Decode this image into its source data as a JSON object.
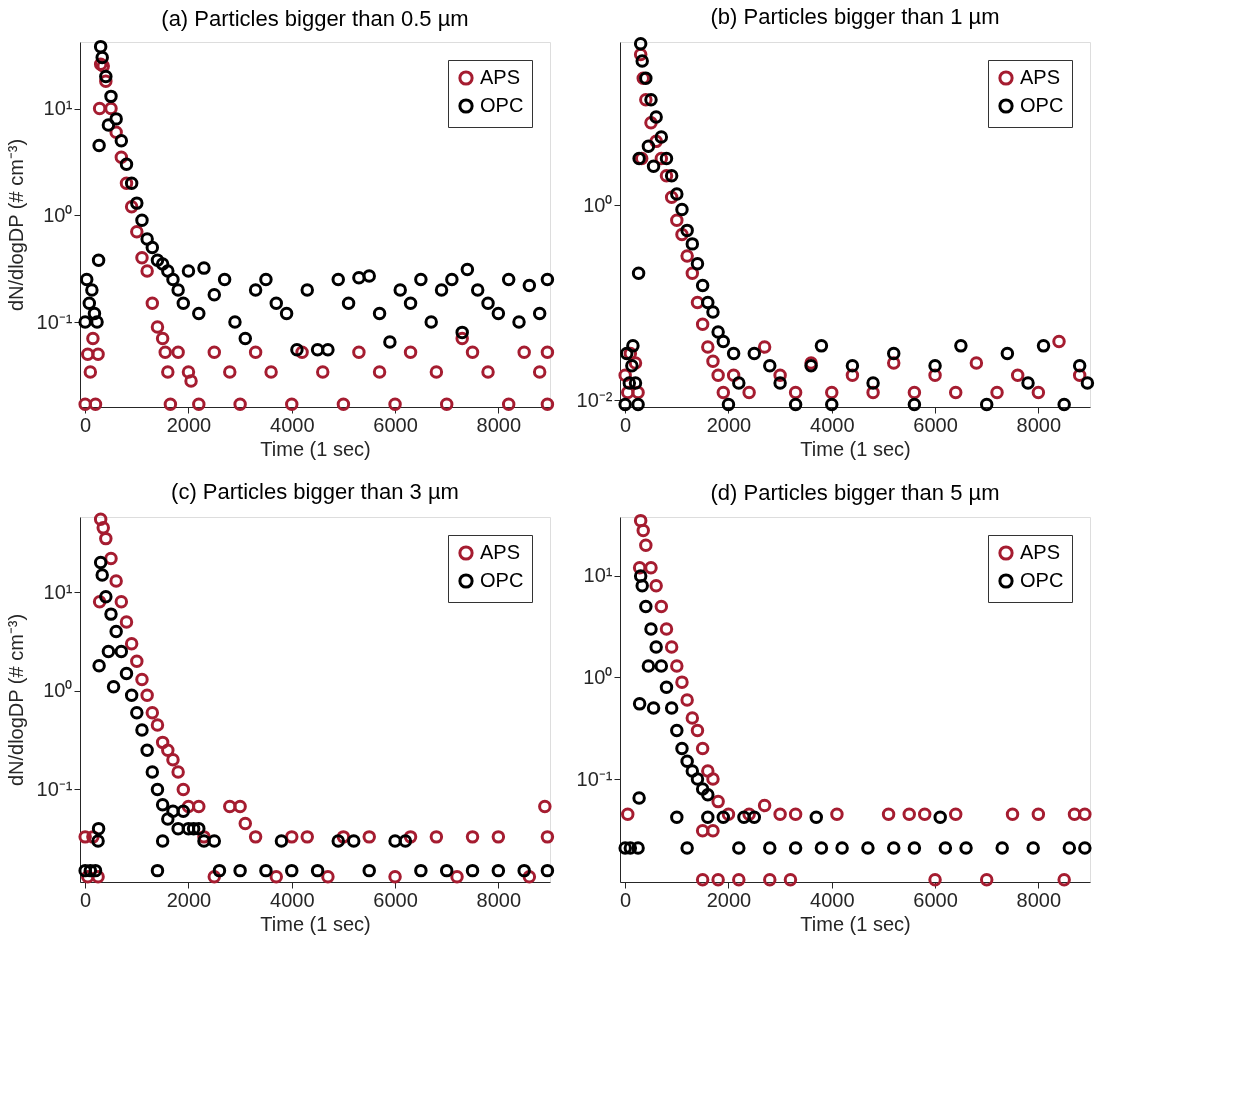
{
  "chart_data": [
    {
      "type": "scatter",
      "title": "(a) Particles bigger than 0.5 µm",
      "xlabel": "Time (1 sec)",
      "ylabel": "dN/dlogDP (# cm⁻³)",
      "log": "y",
      "grid": false,
      "legend": "top right",
      "marker": "circle",
      "xlim": [
        -100,
        9000
      ],
      "xticks": [
        0,
        2000,
        4000,
        6000,
        8000
      ],
      "ylim": [
        0.016,
        42
      ],
      "yticks": [
        {
          "value": 0.1,
          "label": "10⁻¹"
        },
        {
          "value": 1,
          "label": "10⁰"
        },
        {
          "value": 10,
          "label": "10¹"
        }
      ],
      "series": [
        {
          "name": "APS",
          "color": "#a51c30",
          "x": [
            0,
            50,
            100,
            150,
            200,
            250,
            280,
            300,
            350,
            400,
            500,
            600,
            700,
            800,
            900,
            1000,
            1100,
            1200,
            1300,
            1400,
            1500,
            1550,
            1600,
            1650,
            1800,
            2000,
            2050,
            2200,
            2500,
            2800,
            3000,
            3300,
            3600,
            4000,
            4200,
            4600,
            5000,
            5300,
            5700,
            6000,
            6300,
            6800,
            7000,
            7300,
            7500,
            7800,
            8200,
            8500,
            8800,
            8950,
            8950
          ],
          "values": [
            0.017,
            0.05,
            0.034,
            0.07,
            0.017,
            0.05,
            10,
            26,
            25,
            18,
            10,
            6,
            3.5,
            2,
            1.2,
            0.7,
            0.4,
            0.3,
            0.15,
            0.09,
            0.07,
            0.052,
            0.034,
            0.017,
            0.052,
            0.034,
            0.028,
            0.017,
            0.052,
            0.034,
            0.017,
            0.052,
            0.034,
            0.017,
            0.052,
            0.034,
            0.017,
            0.052,
            0.034,
            0.017,
            0.052,
            0.034,
            0.017,
            0.07,
            0.052,
            0.034,
            0.017,
            0.052,
            0.034,
            0.017,
            0.052
          ]
        },
        {
          "name": "OPC",
          "color": "#000000",
          "x": [
            0,
            30,
            80,
            130,
            180,
            230,
            260,
            270,
            300,
            330,
            400,
            450,
            500,
            600,
            700,
            800,
            900,
            1000,
            1100,
            1200,
            1300,
            1400,
            1500,
            1600,
            1700,
            1800,
            1900,
            2000,
            2200,
            2300,
            2500,
            2700,
            2900,
            3100,
            3300,
            3500,
            3700,
            3900,
            4100,
            4300,
            4500,
            4700,
            4900,
            5100,
            5300,
            5500,
            5700,
            5900,
            6100,
            6300,
            6500,
            6700,
            6900,
            7100,
            7300,
            7400,
            7600,
            7800,
            8000,
            8200,
            8400,
            8600,
            8800,
            8950
          ],
          "values": [
            0.1,
            0.25,
            0.15,
            0.2,
            0.12,
            0.1,
            0.38,
            4.5,
            38,
            30,
            20,
            7,
            13,
            8,
            5,
            3,
            2,
            1.3,
            0.9,
            0.6,
            0.5,
            0.38,
            0.35,
            0.3,
            0.25,
            0.2,
            0.15,
            0.3,
            0.12,
            0.32,
            0.18,
            0.25,
            0.1,
            0.07,
            0.2,
            0.25,
            0.15,
            0.12,
            0.055,
            0.2,
            0.055,
            0.055,
            0.25,
            0.15,
            0.26,
            0.27,
            0.12,
            0.065,
            0.2,
            0.15,
            0.25,
            0.1,
            0.2,
            0.25,
            0.08,
            0.31,
            0.2,
            0.15,
            0.12,
            0.25,
            0.1,
            0.22,
            0.12,
            0.25
          ]
        }
      ]
    },
    {
      "type": "scatter",
      "title": "(b) Particles bigger than 1 µm",
      "xlabel": "Time (1 sec)",
      "log": "y",
      "grid": false,
      "legend": "top right",
      "marker": "circle",
      "xlim": [
        -100,
        9000
      ],
      "xticks": [
        0,
        2000,
        4000,
        6000,
        8000
      ],
      "ylim": [
        0.0085,
        47
      ],
      "yticks": [
        {
          "value": 0.01,
          "label": "10⁻²"
        },
        {
          "value": 1,
          "label": "10⁰"
        }
      ],
      "series": [
        {
          "name": "APS",
          "color": "#a51c30",
          "x": [
            0,
            50,
            100,
            200,
            250,
            320,
            300,
            350,
            400,
            500,
            600,
            700,
            800,
            900,
            1000,
            1100,
            1200,
            1300,
            1400,
            1500,
            1600,
            1700,
            1800,
            1900,
            2100,
            2400,
            2700,
            3000,
            3300,
            3600,
            4000,
            4400,
            4800,
            5200,
            5600,
            6000,
            6400,
            6800,
            7200,
            7600,
            8000,
            8400,
            8800
          ],
          "values": [
            0.018,
            0.012,
            0.03,
            0.024,
            0.012,
            3,
            35,
            20,
            12,
            7,
            4.5,
            3,
            2,
            1.2,
            0.7,
            0.5,
            0.3,
            0.2,
            0.1,
            0.06,
            0.035,
            0.025,
            0.018,
            0.012,
            0.018,
            0.012,
            0.035,
            0.018,
            0.012,
            0.024,
            0.012,
            0.018,
            0.012,
            0.024,
            0.012,
            0.018,
            0.012,
            0.024,
            0.012,
            0.018,
            0.012,
            0.04,
            0.018
          ]
        },
        {
          "name": "OPC",
          "color": "#000000",
          "x": [
            0,
            30,
            80,
            130,
            150,
            200,
            250,
            260,
            270,
            300,
            330,
            400,
            450,
            500,
            550,
            600,
            700,
            800,
            900,
            1000,
            1100,
            1200,
            1300,
            1400,
            1500,
            1600,
            1700,
            1800,
            1900,
            2000,
            2100,
            2200,
            2500,
            2800,
            3000,
            3300,
            3600,
            3800,
            4000,
            4400,
            4800,
            5200,
            5600,
            6000,
            6500,
            7000,
            7400,
            7800,
            8100,
            8500,
            8800,
            8950
          ],
          "values": [
            0.009,
            0.03,
            0.015,
            0.0225,
            0.036,
            0.015,
            0.009,
            0.2,
            3,
            45,
            30,
            20,
            4,
            12,
            2.5,
            8,
            5,
            3,
            2,
            1.3,
            0.9,
            0.55,
            0.4,
            0.25,
            0.15,
            0.1,
            0.08,
            0.05,
            0.04,
            0.009,
            0.03,
            0.015,
            0.03,
            0.0225,
            0.015,
            0.009,
            0.0225,
            0.036,
            0.009,
            0.0225,
            0.015,
            0.03,
            0.009,
            0.0225,
            0.036,
            0.009,
            0.03,
            0.015,
            0.036,
            0.009,
            0.0225,
            0.015
          ]
        }
      ]
    },
    {
      "type": "scatter",
      "title": "(c) Particles bigger than 3 µm",
      "xlabel": "Time (1 sec)",
      "ylabel": "dN/dlogDP (# cm⁻³)",
      "log": "y",
      "grid": false,
      "legend": "top right",
      "marker": "circle",
      "xlim": [
        -100,
        9000
      ],
      "xticks": [
        0,
        2000,
        4000,
        6000,
        8000
      ],
      "ylim": [
        0.0115,
        58
      ],
      "yticks": [
        {
          "value": 0.1,
          "label": "10⁻¹"
        },
        {
          "value": 1,
          "label": "10⁰"
        },
        {
          "value": 10,
          "label": "10¹"
        }
      ],
      "series": [
        {
          "name": "APS",
          "color": "#a51c30",
          "x": [
            0,
            50,
            150,
            250,
            280,
            300,
            350,
            400,
            500,
            600,
            700,
            800,
            900,
            1000,
            1100,
            1200,
            1300,
            1400,
            1500,
            1600,
            1700,
            1800,
            1900,
            2000,
            2200,
            2300,
            2500,
            2800,
            3000,
            3100,
            3300,
            3700,
            4000,
            4300,
            4700,
            5000,
            5500,
            6000,
            6300,
            6800,
            7200,
            7500,
            8000,
            8600,
            8900,
            8950
          ],
          "values": [
            0.033,
            0.013,
            0.033,
            0.013,
            8,
            55,
            45,
            35,
            22,
            13,
            8,
            5,
            3,
            2,
            1.3,
            0.9,
            0.6,
            0.45,
            0.3,
            0.25,
            0.2,
            0.15,
            0.1,
            0.067,
            0.067,
            0.033,
            0.013,
            0.067,
            0.067,
            0.045,
            0.033,
            0.013,
            0.033,
            0.033,
            0.013,
            0.033,
            0.033,
            0.013,
            0.033,
            0.033,
            0.013,
            0.033,
            0.033,
            0.013,
            0.067,
            0.033
          ]
        },
        {
          "name": "OPC",
          "color": "#000000",
          "x": [
            0,
            100,
            200,
            250,
            260,
            270,
            300,
            330,
            400,
            450,
            500,
            550,
            600,
            700,
            800,
            900,
            1000,
            1100,
            1200,
            1300,
            1400,
            1500,
            1600,
            1700,
            1800,
            1900,
            2000,
            2100,
            2200,
            1400,
            1500,
            2300,
            2500,
            2600,
            3000,
            3500,
            3800,
            4000,
            4500,
            4900,
            5200,
            5500,
            6000,
            6200,
            6500,
            7000,
            7500,
            8000,
            8500,
            8950
          ],
          "values": [
            0.015,
            0.015,
            0.015,
            0.03,
            0.04,
            1.8,
            20,
            15,
            9,
            2.5,
            6,
            1.1,
            4,
            2.5,
            1.5,
            0.9,
            0.6,
            0.4,
            0.25,
            0.15,
            0.1,
            0.07,
            0.05,
            0.06,
            0.04,
            0.06,
            0.04,
            0.04,
            0.04,
            0.015,
            0.03,
            0.03,
            0.03,
            0.015,
            0.015,
            0.015,
            0.03,
            0.015,
            0.015,
            0.03,
            0.03,
            0.015,
            0.03,
            0.03,
            0.015,
            0.015,
            0.015,
            0.015,
            0.015,
            0.015
          ]
        }
      ]
    },
    {
      "type": "scatter",
      "title": "(d) Particles bigger than 5 µm",
      "xlabel": "Time (1 sec)",
      "log": "y",
      "grid": false,
      "legend": "top right",
      "marker": "circle",
      "xlim": [
        -100,
        9000
      ],
      "xticks": [
        0,
        2000,
        4000,
        6000,
        8000
      ],
      "ylim": [
        0.0097,
        38
      ],
      "yticks": [
        {
          "value": 0.1,
          "label": "10⁻¹"
        },
        {
          "value": 1,
          "label": "10⁰"
        },
        {
          "value": 10,
          "label": "10¹"
        }
      ],
      "series": [
        {
          "name": "APS",
          "color": "#a51c30",
          "x": [
            50,
            280,
            300,
            350,
            400,
            500,
            600,
            700,
            800,
            900,
            1000,
            1100,
            1200,
            1300,
            1400,
            1500,
            1600,
            1700,
            1800,
            1500,
            1700,
            1500,
            1800,
            2000,
            2200,
            2400,
            2700,
            2800,
            3000,
            3200,
            3300,
            4100,
            5100,
            5500,
            5800,
            6000,
            6400,
            7000,
            7500,
            8000,
            8500,
            8700,
            8900
          ],
          "values": [
            0.045,
            12,
            35,
            28,
            20,
            12,
            8,
            5,
            3,
            2,
            1.3,
            0.9,
            0.6,
            0.4,
            0.3,
            0.2,
            0.12,
            0.1,
            0.06,
            0.031,
            0.031,
            0.0102,
            0.0102,
            0.045,
            0.0102,
            0.045,
            0.055,
            0.0102,
            0.045,
            0.0102,
            0.045,
            0.045,
            0.045,
            0.045,
            0.045,
            0.0102,
            0.045,
            0.0102,
            0.045,
            0.045,
            0.0102,
            0.045,
            0.045
          ]
        },
        {
          "name": "OPC",
          "color": "#000000",
          "x": [
            0,
            100,
            250,
            270,
            280,
            300,
            330,
            400,
            450,
            500,
            550,
            600,
            700,
            800,
            900,
            1000,
            1100,
            1200,
            1300,
            1400,
            1500,
            1600,
            1000,
            1200,
            1600,
            1900,
            2200,
            2300,
            2500,
            2800,
            3300,
            3700,
            3800,
            4200,
            4700,
            5200,
            5600,
            6100,
            6200,
            6600,
            7300,
            7900,
            8600,
            8900
          ],
          "values": [
            0.021,
            0.021,
            0.021,
            0.065,
            0.55,
            10,
            8,
            5,
            1.3,
            3,
            0.5,
            2,
            1.3,
            0.8,
            0.5,
            0.3,
            0.2,
            0.15,
            0.12,
            0.1,
            0.08,
            0.07,
            0.042,
            0.021,
            0.042,
            0.042,
            0.021,
            0.042,
            0.042,
            0.021,
            0.021,
            0.042,
            0.021,
            0.021,
            0.021,
            0.021,
            0.021,
            0.042,
            0.021,
            0.021,
            0.021,
            0.021,
            0.021,
            0.021
          ]
        }
      ]
    }
  ]
}
